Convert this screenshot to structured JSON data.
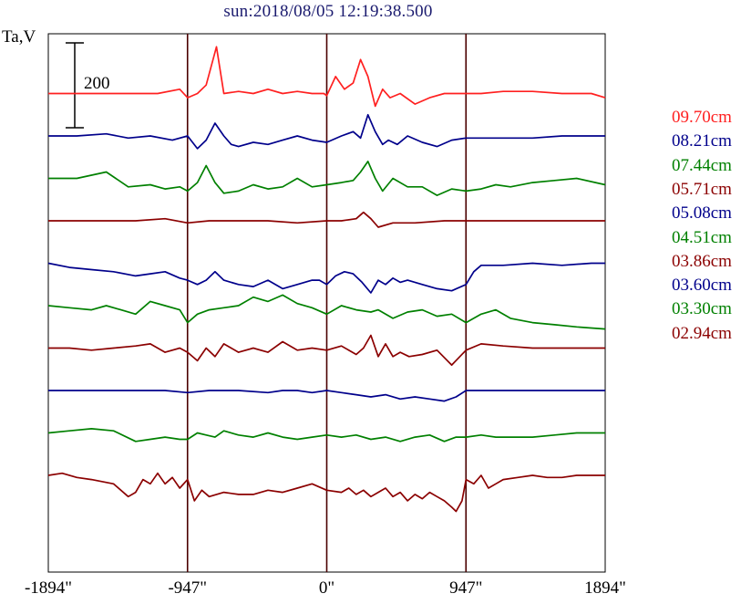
{
  "chart_data": {
    "type": "line",
    "title": "sun:2018/08/05 12:19:38.500",
    "ylabel": "Ta,V",
    "xlabel": "",
    "xlim": [
      -1894,
      1894
    ],
    "x_ticks": [
      {
        "value": -1894,
        "label": "-1894\""
      },
      {
        "value": -947,
        "label": "-947\""
      },
      {
        "value": 0,
        "label": "0\""
      },
      {
        "value": 947,
        "label": "947\""
      },
      {
        "value": 1894,
        "label": "1894\""
      }
    ],
    "vertical_lines": [
      -947,
      0,
      947
    ],
    "scale_bar": {
      "label": "200",
      "value": 200
    },
    "series": [
      {
        "name": "09.70cm",
        "color": "#ff2020",
        "offset": 900,
        "x": [
          -1894,
          -1400,
          -1150,
          -1000,
          -947,
          -880,
          -820,
          -750,
          -700,
          -600,
          -500,
          -400,
          -300,
          -200,
          -100,
          -20,
          0,
          60,
          120,
          180,
          230,
          280,
          330,
          380,
          430,
          500,
          600,
          700,
          800,
          900,
          947,
          1050,
          1200,
          1400,
          1600,
          1800,
          1894
        ],
        "y": [
          0,
          0,
          0,
          10,
          -10,
          0,
          20,
          110,
          0,
          5,
          0,
          10,
          0,
          5,
          0,
          0,
          -5,
          40,
          10,
          25,
          80,
          40,
          -30,
          10,
          -10,
          0,
          -25,
          -10,
          0,
          0,
          0,
          0,
          5,
          5,
          0,
          0,
          -10
        ]
      },
      {
        "name": "08.21cm",
        "color": "#00008b",
        "offset": 800,
        "x": [
          -1894,
          -1700,
          -1500,
          -1350,
          -1200,
          -1050,
          -947,
          -880,
          -820,
          -760,
          -700,
          -650,
          -600,
          -500,
          -400,
          -300,
          -200,
          -100,
          0,
          100,
          180,
          230,
          280,
          330,
          380,
          420,
          480,
          550,
          650,
          750,
          850,
          947,
          1050,
          1200,
          1400,
          1600,
          1800,
          1894
        ],
        "y": [
          0,
          0,
          5,
          -5,
          0,
          -10,
          0,
          -30,
          -10,
          30,
          0,
          -20,
          -25,
          -15,
          -20,
          -10,
          0,
          -10,
          -15,
          0,
          10,
          -5,
          50,
          10,
          -20,
          -10,
          -20,
          0,
          -15,
          -25,
          -10,
          -5,
          -5,
          -5,
          -5,
          0,
          0,
          0
        ]
      },
      {
        "name": "07.44cm",
        "color": "#008000",
        "offset": 700,
        "x": [
          -1894,
          -1700,
          -1500,
          -1350,
          -1200,
          -1100,
          -1000,
          -947,
          -880,
          -820,
          -760,
          -700,
          -600,
          -500,
          -400,
          -300,
          -200,
          -100,
          0,
          100,
          180,
          230,
          280,
          330,
          380,
          450,
          550,
          650,
          750,
          850,
          947,
          1050,
          1150,
          1250,
          1400,
          1550,
          1700,
          1894
        ],
        "y": [
          0,
          0,
          15,
          -20,
          -15,
          -25,
          -20,
          -30,
          -10,
          30,
          -10,
          -35,
          -30,
          -15,
          -25,
          -20,
          0,
          -20,
          -15,
          -10,
          -5,
          15,
          40,
          0,
          -30,
          0,
          -20,
          -20,
          -40,
          -25,
          -30,
          -25,
          -15,
          -20,
          -10,
          -5,
          0,
          -15
        ]
      },
      {
        "name": "05.71cm",
        "color": "#8b0000",
        "offset": 600,
        "x": [
          -1894,
          -1600,
          -1300,
          -1100,
          -947,
          -800,
          -600,
          -400,
          -200,
          0,
          100,
          200,
          250,
          300,
          350,
          450,
          600,
          800,
          947,
          1100,
          1300,
          1500,
          1700,
          1894
        ],
        "y": [
          0,
          0,
          0,
          5,
          -5,
          0,
          0,
          0,
          -5,
          0,
          0,
          5,
          20,
          5,
          -15,
          -5,
          -5,
          0,
          0,
          0,
          0,
          0,
          0,
          0
        ]
      },
      {
        "name": "05.08cm",
        "color": "#00008b",
        "offset": 500,
        "x": [
          -1894,
          -1750,
          -1600,
          -1450,
          -1300,
          -1200,
          -1100,
          -1000,
          -947,
          -880,
          -820,
          -760,
          -700,
          -600,
          -500,
          -400,
          -300,
          -200,
          -100,
          -50,
          0,
          60,
          120,
          180,
          240,
          300,
          350,
          400,
          450,
          500,
          550,
          650,
          750,
          850,
          947,
          1000,
          1050,
          1200,
          1400,
          1600,
          1800,
          1894
        ],
        "y": [
          0,
          -10,
          -15,
          -20,
          -30,
          -25,
          -20,
          -35,
          -40,
          -50,
          -40,
          -20,
          -40,
          -50,
          -55,
          -40,
          -60,
          -50,
          -40,
          -40,
          -50,
          -30,
          -20,
          -25,
          -45,
          -70,
          -40,
          -50,
          -35,
          -45,
          -40,
          -50,
          -60,
          -65,
          -50,
          -20,
          -5,
          -5,
          0,
          -5,
          0,
          0
        ]
      },
      {
        "name": "04.51cm",
        "color": "#008000",
        "offset": 400,
        "x": [
          -1894,
          -1750,
          -1600,
          -1500,
          -1400,
          -1300,
          -1200,
          -1100,
          -1000,
          -947,
          -880,
          -800,
          -700,
          -600,
          -500,
          -400,
          -300,
          -200,
          -100,
          0,
          100,
          200,
          300,
          350,
          450,
          550,
          650,
          750,
          850,
          947,
          1050,
          1150,
          1250,
          1400,
          1550,
          1700,
          1894
        ],
        "y": [
          0,
          -5,
          -10,
          0,
          -10,
          -20,
          10,
          0,
          -10,
          -40,
          -20,
          -10,
          -5,
          0,
          20,
          10,
          25,
          5,
          -5,
          -20,
          0,
          -10,
          -15,
          -10,
          -30,
          -15,
          -10,
          -25,
          -20,
          -40,
          -20,
          -10,
          -30,
          -40,
          -45,
          -50,
          -55
        ]
      },
      {
        "name": "03.86cm",
        "color": "#8b0000",
        "offset": 300,
        "x": [
          -1894,
          -1750,
          -1600,
          -1450,
          -1300,
          -1200,
          -1100,
          -1000,
          -947,
          -880,
          -820,
          -760,
          -700,
          -600,
          -500,
          -400,
          -300,
          -200,
          -100,
          0,
          100,
          200,
          250,
          300,
          350,
          400,
          450,
          500,
          560,
          650,
          750,
          850,
          947,
          1050,
          1200,
          1400,
          1600,
          1800,
          1894
        ],
        "y": [
          0,
          0,
          -5,
          0,
          5,
          10,
          -10,
          0,
          -10,
          -30,
          0,
          -20,
          10,
          -10,
          0,
          -10,
          15,
          -5,
          0,
          -5,
          5,
          -15,
          0,
          30,
          -20,
          10,
          -20,
          -10,
          -20,
          -15,
          -5,
          -40,
          -5,
          10,
          5,
          0,
          0,
          0,
          0
        ]
      },
      {
        "name": "03.60cm",
        "color": "#00008b",
        "offset": 200,
        "x": [
          -1894,
          -1600,
          -1300,
          -1100,
          -947,
          -800,
          -600,
          -400,
          -300,
          -200,
          -100,
          0,
          100,
          200,
          300,
          400,
          500,
          600,
          700,
          800,
          880,
          947,
          1100,
          1300,
          1500,
          1700,
          1894
        ],
        "y": [
          0,
          0,
          0,
          0,
          -5,
          0,
          0,
          -5,
          0,
          0,
          -5,
          0,
          -5,
          -10,
          -15,
          -10,
          -20,
          -15,
          -20,
          -25,
          -15,
          0,
          0,
          0,
          0,
          0,
          0
        ]
      },
      {
        "name": "03.30cm",
        "color": "#008000",
        "offset": 100,
        "x": [
          -1894,
          -1750,
          -1600,
          -1450,
          -1300,
          -1200,
          -1100,
          -1000,
          -947,
          -880,
          -820,
          -760,
          -700,
          -600,
          -500,
          -400,
          -300,
          -200,
          -100,
          0,
          100,
          200,
          300,
          400,
          500,
          600,
          700,
          800,
          880,
          947,
          1050,
          1150,
          1250,
          1400,
          1550,
          1700,
          1894
        ],
        "y": [
          0,
          5,
          10,
          5,
          -20,
          -15,
          -10,
          -15,
          -15,
          0,
          -5,
          -10,
          5,
          -5,
          -10,
          0,
          -10,
          -15,
          -10,
          -5,
          -10,
          -5,
          -15,
          -10,
          -20,
          -10,
          -5,
          -20,
          -10,
          -10,
          -5,
          -10,
          -10,
          -10,
          -5,
          0,
          0
        ]
      },
      {
        "name": "02.94cm",
        "color": "#8b0000",
        "offset": 0,
        "x": [
          -1894,
          -1800,
          -1700,
          -1600,
          -1450,
          -1350,
          -1300,
          -1250,
          -1200,
          -1150,
          -1100,
          -1050,
          -1000,
          -947,
          -900,
          -850,
          -800,
          -700,
          -600,
          -500,
          -400,
          -300,
          -200,
          -100,
          0,
          100,
          150,
          200,
          250,
          300,
          350,
          400,
          450,
          500,
          550,
          600,
          650,
          700,
          750,
          800,
          850,
          880,
          920,
          947,
          1000,
          1050,
          1100,
          1150,
          1200,
          1300,
          1400,
          1500,
          1600,
          1700,
          1800,
          1894
        ],
        "y": [
          0,
          5,
          -5,
          -10,
          -20,
          -50,
          -40,
          -10,
          -20,
          5,
          -20,
          -5,
          -30,
          -10,
          -60,
          -35,
          -50,
          -40,
          -45,
          -45,
          -35,
          -40,
          -30,
          -20,
          -35,
          -40,
          -30,
          -45,
          -35,
          -50,
          -40,
          -30,
          -50,
          -40,
          -60,
          -45,
          -55,
          -40,
          -50,
          -60,
          -75,
          -85,
          -60,
          -10,
          -20,
          0,
          -30,
          -20,
          -10,
          -5,
          0,
          -5,
          -5,
          0,
          0,
          0
        ]
      }
    ]
  }
}
